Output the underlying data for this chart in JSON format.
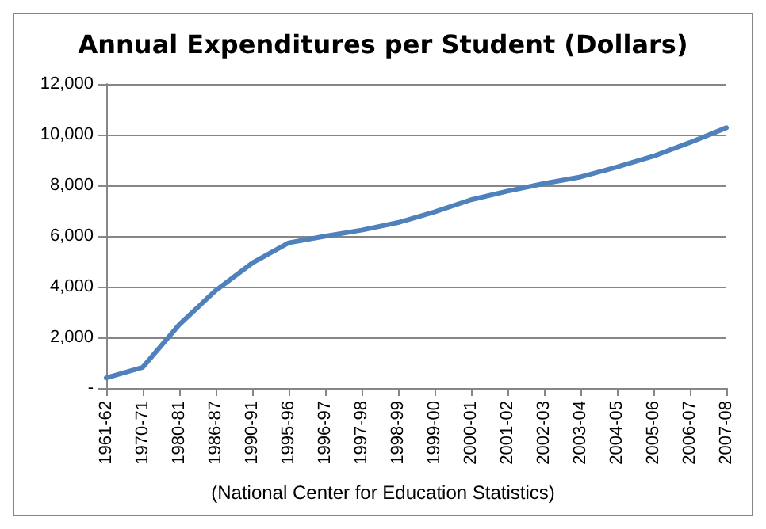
{
  "chart_data": {
    "type": "line",
    "title": "Annual Expenditures per Student (Dollars)",
    "categories": [
      "1961-62",
      "1970-71",
      "1980-81",
      "1986-87",
      "1990-91",
      "1995-96",
      "1996-97",
      "1997-98",
      "1998-99",
      "1999-00",
      "2000-01",
      "2001-02",
      "2002-03",
      "2003-04",
      "2004-05",
      "2005-06",
      "2006-07",
      "2007-08"
    ],
    "series": [
      {
        "color": "#4f81bd",
        "values": [
          400,
          820,
          2500,
          3850,
          4930,
          5730,
          5990,
          6230,
          6530,
          6950,
          7430,
          7770,
          8070,
          8330,
          8720,
          9150,
          9690,
          10270
        ]
      }
    ],
    "ylim": [
      0,
      12000
    ],
    "yticks": [
      {
        "value": 0,
        "label": "-"
      },
      {
        "value": 2000,
        "label": "2,000"
      },
      {
        "value": 4000,
        "label": "4,000"
      },
      {
        "value": 6000,
        "label": "6,000"
      },
      {
        "value": 8000,
        "label": "8,000"
      },
      {
        "value": 10000,
        "label": "10,000"
      },
      {
        "value": 12000,
        "label": "12,000"
      }
    ],
    "grid": "y",
    "marker": "none",
    "line_style": "solid",
    "annotations": [
      "(National Center for Education Statistics)"
    ]
  }
}
